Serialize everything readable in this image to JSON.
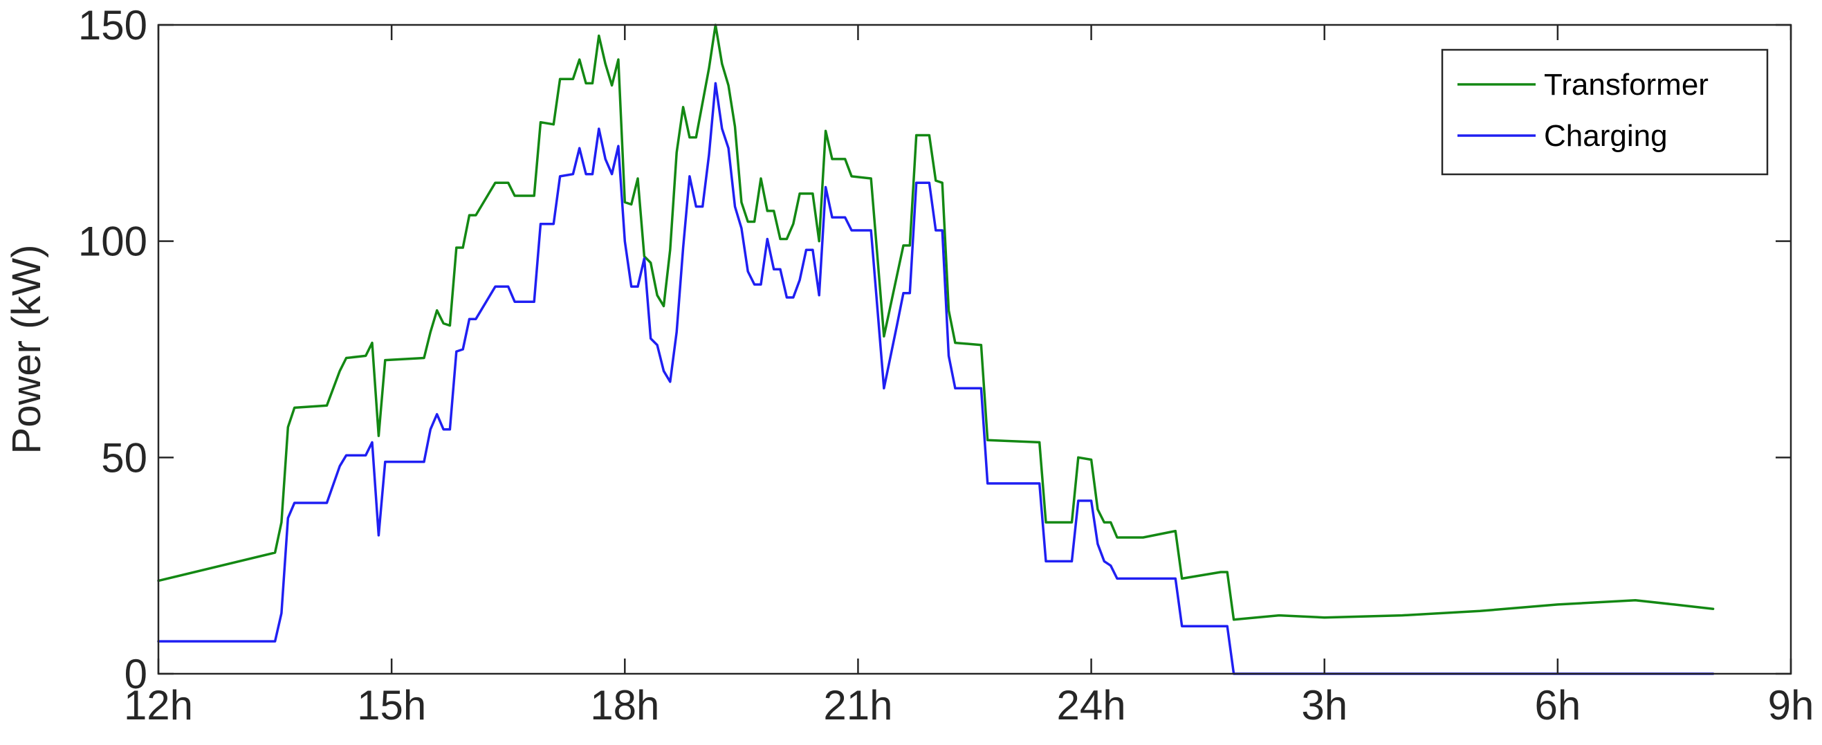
{
  "chart_data": {
    "type": "line",
    "title": "",
    "xlabel": "",
    "ylabel": "Power (kW)",
    "ylim": [
      0,
      150
    ],
    "xlim": [
      "12h",
      "9h"
    ],
    "x_ticks": [
      "12h",
      "15h",
      "18h",
      "21h",
      "24h",
      "3h",
      "6h",
      "9h"
    ],
    "y_ticks": [
      "0",
      "50",
      "100",
      "150"
    ],
    "grid": false,
    "legend_position": "top-right",
    "series": [
      {
        "name": "Transformer",
        "color": "#138813",
        "points": [
          [
            "12:00",
            21.5
          ],
          [
            "13:30",
            28
          ],
          [
            "13:35",
            35
          ],
          [
            "13:40",
            57
          ],
          [
            "13:45",
            61.5
          ],
          [
            "14:10",
            62
          ],
          [
            "14:20",
            70
          ],
          [
            "14:25",
            73
          ],
          [
            "14:40",
            73.5
          ],
          [
            "14:45",
            76.5
          ],
          [
            "14:50",
            55
          ],
          [
            "14:55",
            72.5
          ],
          [
            "15:25",
            73
          ],
          [
            "15:30",
            79
          ],
          [
            "15:35",
            84
          ],
          [
            "15:40",
            81
          ],
          [
            "15:45",
            80.5
          ],
          [
            "15:50",
            98.5
          ],
          [
            "15:55",
            98.5
          ],
          [
            "16:00",
            106
          ],
          [
            "16:05",
            106
          ],
          [
            "16:15",
            111
          ],
          [
            "16:20",
            113.5
          ],
          [
            "16:30",
            113.5
          ],
          [
            "16:35",
            110.5
          ],
          [
            "16:50",
            110.5
          ],
          [
            "16:55",
            127.5
          ],
          [
            "17:05",
            127
          ],
          [
            "17:10",
            137.5
          ],
          [
            "17:20",
            137.5
          ],
          [
            "17:25",
            142
          ],
          [
            "17:30",
            136.5
          ],
          [
            "17:35",
            136.5
          ],
          [
            "17:40",
            147.5
          ],
          [
            "17:45",
            141
          ],
          [
            "17:50",
            136
          ],
          [
            "17:55",
            142
          ],
          [
            "18:00",
            109
          ],
          [
            "18:05",
            108.5
          ],
          [
            "18:10",
            114.5
          ],
          [
            "18:15",
            96.5
          ],
          [
            "18:20",
            95
          ],
          [
            "18:25",
            87.5
          ],
          [
            "18:30",
            85
          ],
          [
            "18:35",
            98
          ],
          [
            "18:40",
            120.5
          ],
          [
            "18:45",
            131
          ],
          [
            "18:50",
            124
          ],
          [
            "18:55",
            124
          ],
          [
            "19:05",
            140
          ],
          [
            "19:10",
            150
          ],
          [
            "19:15",
            141
          ],
          [
            "19:20",
            136
          ],
          [
            "19:25",
            126.5
          ],
          [
            "19:30",
            109
          ],
          [
            "19:35",
            104.5
          ],
          [
            "19:40",
            104.5
          ],
          [
            "19:45",
            114.5
          ],
          [
            "19:50",
            107
          ],
          [
            "19:55",
            107
          ],
          [
            "20:00",
            100.5
          ],
          [
            "20:05",
            100.5
          ],
          [
            "20:10",
            104
          ],
          [
            "20:15",
            111
          ],
          [
            "20:25",
            111
          ],
          [
            "20:30",
            100
          ],
          [
            "20:35",
            125.5
          ],
          [
            "20:40",
            119
          ],
          [
            "20:50",
            119
          ],
          [
            "20:55",
            115
          ],
          [
            "21:10",
            114.5
          ],
          [
            "21:20",
            78
          ],
          [
            "21:30",
            92
          ],
          [
            "21:35",
            99
          ],
          [
            "21:40",
            99
          ],
          [
            "21:45",
            124.5
          ],
          [
            "21:55",
            124.5
          ],
          [
            "22:00",
            114
          ],
          [
            "22:05",
            113.5
          ],
          [
            "22:10",
            84
          ],
          [
            "22:15",
            76.5
          ],
          [
            "22:35",
            76
          ],
          [
            "22:40",
            54
          ],
          [
            "23:20",
            53.5
          ],
          [
            "23:25",
            35
          ],
          [
            "23:45",
            35
          ],
          [
            "23:50",
            50
          ],
          [
            "24:00",
            49.5
          ],
          [
            "24:05",
            38
          ],
          [
            "24:10",
            35
          ],
          [
            "24:15",
            35
          ],
          [
            "24:20",
            31.5
          ],
          [
            "24:40",
            31.5
          ],
          [
            "25:05",
            33
          ],
          [
            "25:10",
            22
          ],
          [
            "25:40",
            23.5
          ],
          [
            "25:45",
            23.5
          ],
          [
            "25:50",
            12.5
          ],
          [
            "26:25",
            13.5
          ],
          [
            "27:00",
            13
          ],
          [
            "28:00",
            13.5
          ],
          [
            "29:00",
            14.5
          ],
          [
            "30:00",
            16
          ],
          [
            "31:00",
            17
          ],
          [
            "31:30",
            16
          ],
          [
            "32:00",
            15
          ]
        ]
      },
      {
        "name": "Charging",
        "color": "#1f1ff2",
        "points": [
          [
            "12:00",
            7.5
          ],
          [
            "13:30",
            7.5
          ],
          [
            "13:35",
            14
          ],
          [
            "13:40",
            36
          ],
          [
            "13:45",
            39.5
          ],
          [
            "14:10",
            39.5
          ],
          [
            "14:20",
            48
          ],
          [
            "14:25",
            50.5
          ],
          [
            "14:40",
            50.5
          ],
          [
            "14:45",
            53.5
          ],
          [
            "14:50",
            32
          ],
          [
            "14:55",
            49
          ],
          [
            "15:25",
            49
          ],
          [
            "15:30",
            56.5
          ],
          [
            "15:35",
            60
          ],
          [
            "15:40",
            56.5
          ],
          [
            "15:45",
            56.5
          ],
          [
            "15:50",
            74.5
          ],
          [
            "15:55",
            75
          ],
          [
            "16:00",
            82
          ],
          [
            "16:05",
            82
          ],
          [
            "16:15",
            87
          ],
          [
            "16:20",
            89.5
          ],
          [
            "16:30",
            89.5
          ],
          [
            "16:35",
            86
          ],
          [
            "16:50",
            86
          ],
          [
            "16:55",
            104
          ],
          [
            "17:05",
            104
          ],
          [
            "17:10",
            115
          ],
          [
            "17:20",
            115.5
          ],
          [
            "17:25",
            121.5
          ],
          [
            "17:30",
            115.5
          ],
          [
            "17:35",
            115.5
          ],
          [
            "17:40",
            126
          ],
          [
            "17:45",
            119
          ],
          [
            "17:50",
            115.5
          ],
          [
            "17:55",
            122
          ],
          [
            "18:00",
            100
          ],
          [
            "18:05",
            89.5
          ],
          [
            "18:10",
            89.5
          ],
          [
            "18:15",
            96
          ],
          [
            "18:20",
            77.5
          ],
          [
            "18:25",
            76
          ],
          [
            "18:30",
            70
          ],
          [
            "18:35",
            67.5
          ],
          [
            "18:40",
            79
          ],
          [
            "18:45",
            98.5
          ],
          [
            "18:50",
            115
          ],
          [
            "18:55",
            108
          ],
          [
            "19:00",
            108
          ],
          [
            "19:05",
            120
          ],
          [
            "19:10",
            136.5
          ],
          [
            "19:15",
            126
          ],
          [
            "19:20",
            121.5
          ],
          [
            "19:25",
            108
          ],
          [
            "19:30",
            103
          ],
          [
            "19:35",
            93
          ],
          [
            "19:40",
            90
          ],
          [
            "19:45",
            90
          ],
          [
            "19:50",
            100.5
          ],
          [
            "19:55",
            93.5
          ],
          [
            "20:00",
            93.5
          ],
          [
            "20:05",
            87
          ],
          [
            "20:10",
            87
          ],
          [
            "20:15",
            91
          ],
          [
            "20:20",
            98
          ],
          [
            "20:25",
            98
          ],
          [
            "20:30",
            87.5
          ],
          [
            "20:35",
            112.5
          ],
          [
            "20:40",
            105.5
          ],
          [
            "20:50",
            105.5
          ],
          [
            "20:55",
            102.5
          ],
          [
            "21:10",
            102.5
          ],
          [
            "21:20",
            66
          ],
          [
            "21:30",
            80.5
          ],
          [
            "21:35",
            88
          ],
          [
            "21:40",
            88
          ],
          [
            "21:45",
            113.5
          ],
          [
            "21:55",
            113.5
          ],
          [
            "22:00",
            102.5
          ],
          [
            "22:05",
            102.5
          ],
          [
            "22:10",
            73.5
          ],
          [
            "22:15",
            66
          ],
          [
            "22:35",
            66
          ],
          [
            "22:40",
            44
          ],
          [
            "23:20",
            44
          ],
          [
            "23:25",
            26
          ],
          [
            "23:45",
            26
          ],
          [
            "23:50",
            40
          ],
          [
            "24:00",
            40
          ],
          [
            "24:05",
            30
          ],
          [
            "24:10",
            26
          ],
          [
            "24:15",
            25
          ],
          [
            "24:20",
            22
          ],
          [
            "25:05",
            22
          ],
          [
            "25:10",
            11
          ],
          [
            "25:40",
            11
          ],
          [
            "25:45",
            11
          ],
          [
            "25:50",
            0
          ],
          [
            "32:00",
            0
          ]
        ]
      }
    ]
  }
}
